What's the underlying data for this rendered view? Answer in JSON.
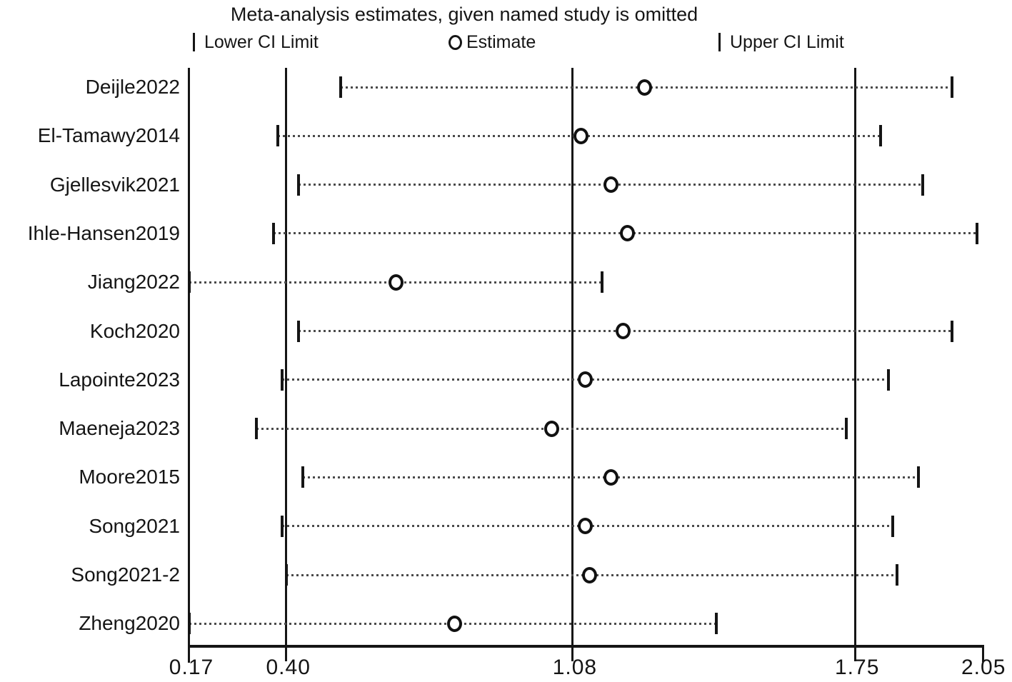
{
  "title": "Meta-analysis estimates, given named study is omitted",
  "legend": {
    "lower": "Lower CI Limit",
    "estimate": "Estimate",
    "upper": "Upper CI Limit"
  },
  "chart_data": {
    "type": "scatter",
    "subtype": "leave-one-out-meta-analysis-forest",
    "title": "Meta-analysis estimates, given named study is omitted",
    "x_axis": {
      "range": [
        0.17,
        2.05
      ],
      "tick_values": [
        0.17,
        0.4,
        1.08,
        1.75,
        2.05
      ],
      "tick_labels": [
        "0.17",
        "0.40",
        "1.08",
        "1.75",
        "2.05"
      ],
      "reference_line_values": [
        0.4,
        1.08,
        1.75
      ],
      "scale": "linear"
    },
    "legend_position": "top",
    "grid": false,
    "marker": "open-circle",
    "interval_style": "dotted-line-with-end-ticks",
    "studies": [
      {
        "name": "Deijle2022",
        "lower": 0.53,
        "estimate": 1.25,
        "upper": 1.98
      },
      {
        "name": "El-Tamawy2014",
        "lower": 0.38,
        "estimate": 1.1,
        "upper": 1.81
      },
      {
        "name": "Gjellesvik2021",
        "lower": 0.43,
        "estimate": 1.17,
        "upper": 1.91
      },
      {
        "name": "Ihle-Hansen2019",
        "lower": 0.37,
        "estimate": 1.21,
        "upper": 2.04
      },
      {
        "name": "Jiang2022",
        "lower": 0.17,
        "estimate": 0.66,
        "upper": 1.15
      },
      {
        "name": "Koch2020",
        "lower": 0.43,
        "estimate": 1.2,
        "upper": 1.98
      },
      {
        "name": "Lapointe2023",
        "lower": 0.39,
        "estimate": 1.11,
        "upper": 1.83
      },
      {
        "name": "Maeneja2023",
        "lower": 0.33,
        "estimate": 1.03,
        "upper": 1.73
      },
      {
        "name": "Moore2015",
        "lower": 0.44,
        "estimate": 1.17,
        "upper": 1.9
      },
      {
        "name": "Song2021",
        "lower": 0.39,
        "estimate": 1.11,
        "upper": 1.84
      },
      {
        "name": "Song2021-2",
        "lower": 0.4,
        "estimate": 1.12,
        "upper": 1.85
      },
      {
        "name": "Zheng2020",
        "lower": 0.17,
        "estimate": 0.8,
        "upper": 1.42
      }
    ],
    "colors": {
      "line": "#151515",
      "dotted_interval": "#4a4a4a",
      "marker_fill": "#ffffff",
      "background": "#ffffff"
    }
  }
}
